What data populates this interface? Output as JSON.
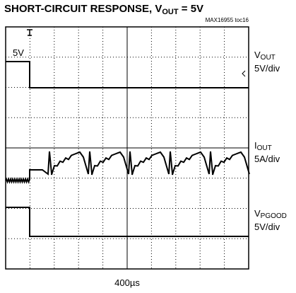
{
  "title": {
    "text": "SHORT-CIRCUIT RESPONSE, V",
    "sub": "OUT",
    "tail": " = 5V"
  },
  "note": "MAX16955 toc16",
  "marker": "5V",
  "timebase": "400µs",
  "channels": [
    {
      "symbol": "V",
      "sub": "OUT",
      "scale": "5V/div"
    },
    {
      "symbol": "I",
      "sub": "OUT",
      "scale": "5A/div"
    },
    {
      "symbol": "V",
      "sub": "PGOOD",
      "scale": "5V/div"
    }
  ]
}
